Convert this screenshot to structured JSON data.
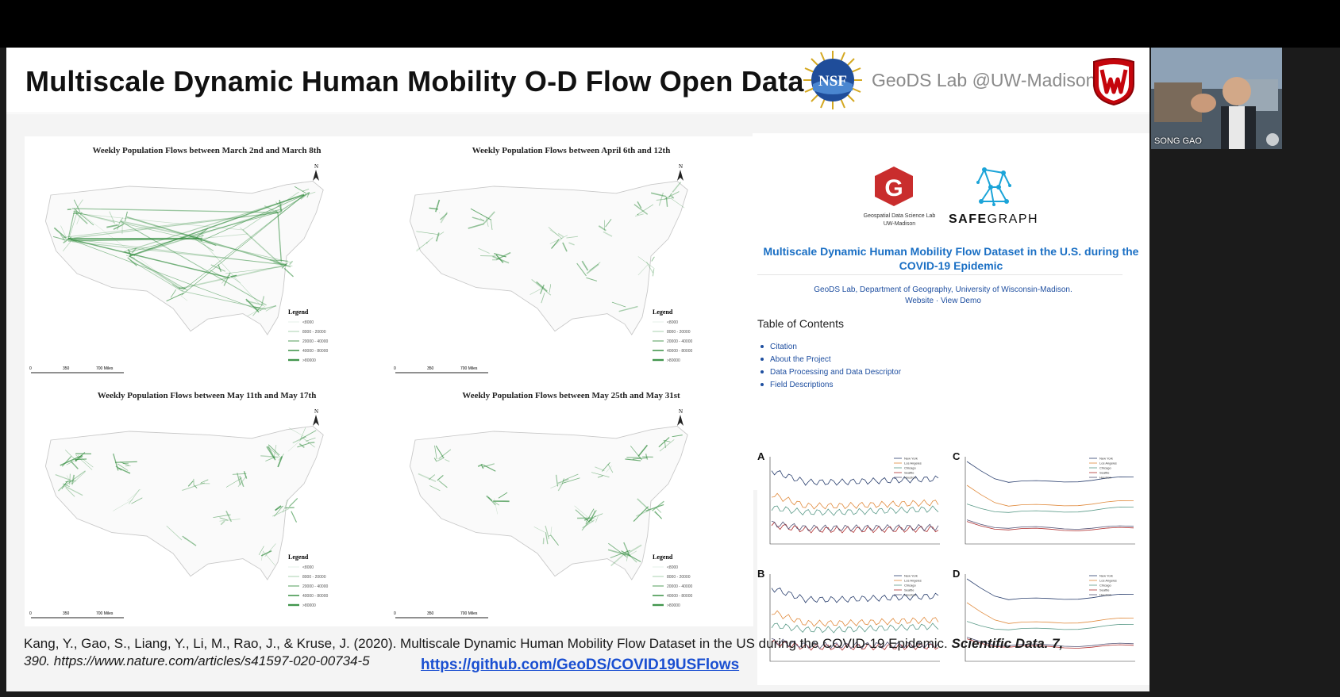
{
  "slide": {
    "title": "Multiscale Dynamic Human Mobility O-D Flow Open Data",
    "header_lab": "GeoDS Lab @UW-Madison",
    "nsf_logo_text": "NSF"
  },
  "maps": {
    "panels": [
      {
        "title": "Weekly Population Flows between March 2nd and March 8th",
        "legend_title": "Legend",
        "legend_items": [
          "<8000",
          "8000 - 20000",
          "20000 - 40000",
          "40000 - 80000",
          ">80000"
        ],
        "scale": [
          "0",
          "350",
          "700 Miles"
        ],
        "north": "N"
      },
      {
        "title": "Weekly Population Flows between April 6th and 12th",
        "legend_title": "Legend",
        "legend_items": [
          "<8000",
          "8000 - 20000",
          "20000 - 40000",
          "40000 - 80000",
          ">80000"
        ],
        "scale": [
          "0",
          "350",
          "700 Miles"
        ],
        "north": "N"
      },
      {
        "title": "Weekly Population Flows between May 11th and May 17th",
        "legend_title": "Legend",
        "legend_items": [
          "<8000",
          "8000 - 20000",
          "20000 - 40000",
          "40000 - 80000",
          ">80000"
        ],
        "scale": [
          "0",
          "350",
          "700 Miles"
        ],
        "north": "N"
      },
      {
        "title": "Weekly Population Flows between May 25th and May 31st",
        "legend_title": "Legend",
        "legend_items": [
          "<8000",
          "8000 - 20000",
          "20000 - 40000",
          "40000 - 80000",
          ">80000"
        ],
        "scale": [
          "0",
          "350",
          "700 Miles"
        ],
        "north": "N"
      }
    ],
    "flow_color": "#2e8b3a"
  },
  "readme": {
    "geods_letter": "G",
    "geods_caption_1": "Geospatial Data Science Lab",
    "geods_caption_2": "UW-Madison",
    "safegraph_1": "SAFE",
    "safegraph_2": "GRAPH",
    "title": "Multiscale Dynamic Human Mobility Flow Dataset in the U.S. during the COVID-19 Epidemic",
    "subtitle": "GeoDS Lab, Department of Geography, University of Wisconsin-Madison.",
    "links": "Website · View Demo",
    "toc_title": "Table of Contents",
    "toc_items": [
      "Citation",
      "About the Project",
      "Data Processing and Data Descriptor",
      "Field Descriptions"
    ]
  },
  "charts": {
    "letters": [
      "A",
      "C",
      "B",
      "D"
    ],
    "legend": [
      "New York",
      "Los Angeles",
      "Chicago",
      "Seattle",
      "Houston"
    ],
    "colors": [
      "#2a3f6e",
      "#e08a3c",
      "#5a9a88",
      "#b03030",
      "#555577"
    ]
  },
  "citation": {
    "text": "Kang, Y., Gao, S., Liang, Y., Li, M., Rao, J., & Kruse, J. (2020). Multiscale Dynamic Human Mobility Flow Dataset in the US during the COVID-19 Epidemic.",
    "journal": "Scientific Data. 7,",
    "rest": "390. https://www.nature.com/articles/s41597-020-00734-5",
    "github": "https://github.com/GeoDS/COVID19USFlows"
  },
  "webcam": {
    "name": "SONG GAO"
  }
}
